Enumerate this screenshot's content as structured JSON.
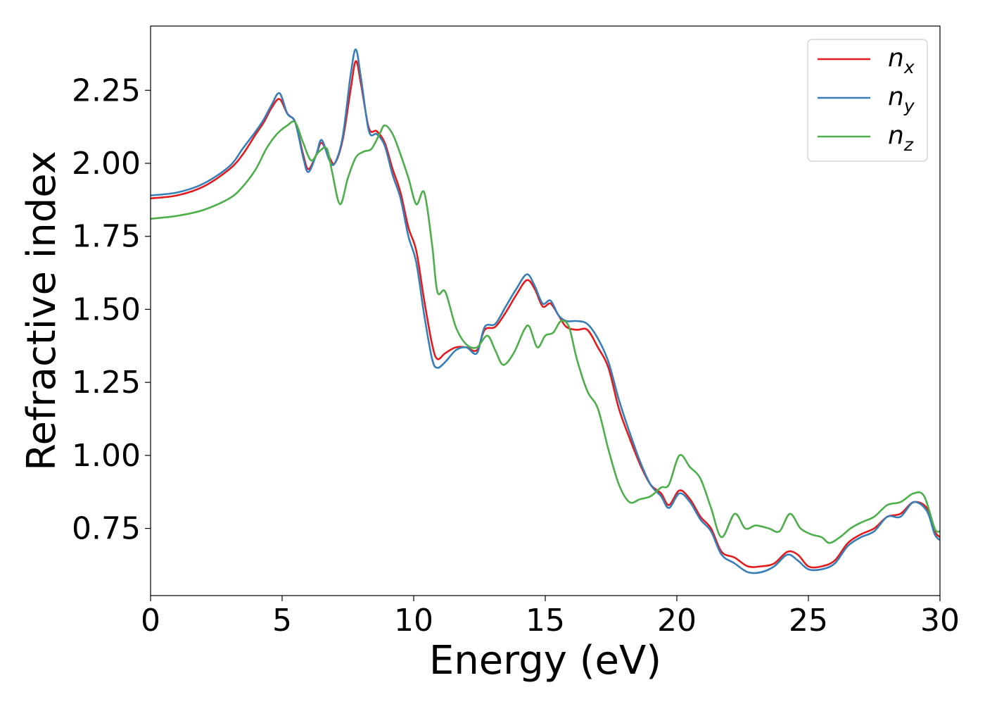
{
  "chart_data": {
    "type": "line",
    "xlabel": "Energy (eV)",
    "ylabel": "Refractive index",
    "xlim": [
      0,
      30
    ],
    "ylim": [
      0.52,
      2.47
    ],
    "x_ticks": [
      "0",
      "5",
      "10",
      "15",
      "20",
      "25",
      "30"
    ],
    "y_ticks": [
      "0.75",
      "1.00",
      "1.25",
      "1.50",
      "1.75",
      "2.00",
      "2.25"
    ],
    "grid": false,
    "legend_position": "top-right",
    "series": [
      {
        "name": "n_x",
        "label_base": "n",
        "label_sub": "x",
        "color": "#e41a1c",
        "points": [
          [
            0,
            1.88
          ],
          [
            1,
            1.89
          ],
          [
            2,
            1.92
          ],
          [
            3,
            1.98
          ],
          [
            3.5,
            2.03
          ],
          [
            4,
            2.1
          ],
          [
            4.3,
            2.14
          ],
          [
            4.6,
            2.19
          ],
          [
            4.9,
            2.22
          ],
          [
            5.2,
            2.17
          ],
          [
            5.5,
            2.14
          ],
          [
            5.8,
            2.03
          ],
          [
            6.0,
            1.98
          ],
          [
            6.3,
            2.03
          ],
          [
            6.5,
            2.07
          ],
          [
            6.8,
            2.02
          ],
          [
            7.0,
            2.0
          ],
          [
            7.3,
            2.08
          ],
          [
            7.6,
            2.25
          ],
          [
            7.8,
            2.35
          ],
          [
            8.0,
            2.27
          ],
          [
            8.3,
            2.12
          ],
          [
            8.6,
            2.11
          ],
          [
            8.9,
            2.07
          ],
          [
            9.2,
            1.98
          ],
          [
            9.5,
            1.9
          ],
          [
            9.8,
            1.78
          ],
          [
            10.1,
            1.7
          ],
          [
            10.4,
            1.53
          ],
          [
            10.7,
            1.38
          ],
          [
            10.9,
            1.33
          ],
          [
            11.2,
            1.35
          ],
          [
            11.6,
            1.37
          ],
          [
            12.0,
            1.37
          ],
          [
            12.4,
            1.36
          ],
          [
            12.7,
            1.43
          ],
          [
            13.1,
            1.44
          ],
          [
            13.5,
            1.49
          ],
          [
            13.9,
            1.55
          ],
          [
            14.3,
            1.6
          ],
          [
            14.6,
            1.57
          ],
          [
            14.9,
            1.51
          ],
          [
            15.2,
            1.52
          ],
          [
            15.5,
            1.48
          ],
          [
            15.8,
            1.44
          ],
          [
            16.2,
            1.43
          ],
          [
            16.6,
            1.43
          ],
          [
            17.0,
            1.37
          ],
          [
            17.4,
            1.3
          ],
          [
            17.8,
            1.16
          ],
          [
            18.2,
            1.06
          ],
          [
            18.6,
            0.97
          ],
          [
            19.0,
            0.9
          ],
          [
            19.4,
            0.87
          ],
          [
            19.7,
            0.83
          ],
          [
            20.1,
            0.88
          ],
          [
            20.5,
            0.85
          ],
          [
            20.9,
            0.79
          ],
          [
            21.3,
            0.75
          ],
          [
            21.7,
            0.67
          ],
          [
            22.2,
            0.65
          ],
          [
            22.7,
            0.62
          ],
          [
            23.2,
            0.62
          ],
          [
            23.7,
            0.63
          ],
          [
            24.2,
            0.67
          ],
          [
            24.6,
            0.66
          ],
          [
            25.0,
            0.62
          ],
          [
            25.5,
            0.62
          ],
          [
            26.0,
            0.64
          ],
          [
            26.5,
            0.7
          ],
          [
            27.0,
            0.73
          ],
          [
            27.5,
            0.75
          ],
          [
            28.0,
            0.79
          ],
          [
            28.5,
            0.8
          ],
          [
            29.0,
            0.84
          ],
          [
            29.5,
            0.82
          ],
          [
            29.8,
            0.74
          ],
          [
            30,
            0.72
          ]
        ]
      },
      {
        "name": "n_y",
        "label_base": "n",
        "label_sub": "y",
        "color": "#377eb8",
        "points": [
          [
            0,
            1.89
          ],
          [
            1,
            1.9
          ],
          [
            2,
            1.93
          ],
          [
            3,
            1.99
          ],
          [
            3.5,
            2.05
          ],
          [
            4,
            2.11
          ],
          [
            4.3,
            2.15
          ],
          [
            4.6,
            2.2
          ],
          [
            4.9,
            2.24
          ],
          [
            5.2,
            2.17
          ],
          [
            5.5,
            2.14
          ],
          [
            5.8,
            2.02
          ],
          [
            6.0,
            1.97
          ],
          [
            6.3,
            2.03
          ],
          [
            6.5,
            2.08
          ],
          [
            6.8,
            2.01
          ],
          [
            7.0,
            2.0
          ],
          [
            7.3,
            2.09
          ],
          [
            7.6,
            2.3
          ],
          [
            7.8,
            2.39
          ],
          [
            8.0,
            2.29
          ],
          [
            8.3,
            2.11
          ],
          [
            8.6,
            2.1
          ],
          [
            8.9,
            2.06
          ],
          [
            9.2,
            1.96
          ],
          [
            9.5,
            1.88
          ],
          [
            9.8,
            1.75
          ],
          [
            10.1,
            1.66
          ],
          [
            10.4,
            1.48
          ],
          [
            10.7,
            1.33
          ],
          [
            10.9,
            1.3
          ],
          [
            11.2,
            1.32
          ],
          [
            11.6,
            1.36
          ],
          [
            12.0,
            1.37
          ],
          [
            12.4,
            1.35
          ],
          [
            12.7,
            1.44
          ],
          [
            13.1,
            1.45
          ],
          [
            13.5,
            1.51
          ],
          [
            13.9,
            1.57
          ],
          [
            14.3,
            1.62
          ],
          [
            14.6,
            1.58
          ],
          [
            14.9,
            1.52
          ],
          [
            15.2,
            1.53
          ],
          [
            15.5,
            1.48
          ],
          [
            15.8,
            1.46
          ],
          [
            16.2,
            1.46
          ],
          [
            16.6,
            1.45
          ],
          [
            17.0,
            1.4
          ],
          [
            17.4,
            1.32
          ],
          [
            17.8,
            1.19
          ],
          [
            18.2,
            1.08
          ],
          [
            18.6,
            0.98
          ],
          [
            19.0,
            0.9
          ],
          [
            19.4,
            0.86
          ],
          [
            19.7,
            0.82
          ],
          [
            20.1,
            0.87
          ],
          [
            20.5,
            0.84
          ],
          [
            20.9,
            0.78
          ],
          [
            21.3,
            0.74
          ],
          [
            21.7,
            0.66
          ],
          [
            22.2,
            0.63
          ],
          [
            22.7,
            0.6
          ],
          [
            23.2,
            0.6
          ],
          [
            23.7,
            0.62
          ],
          [
            24.2,
            0.66
          ],
          [
            24.6,
            0.64
          ],
          [
            25.0,
            0.61
          ],
          [
            25.5,
            0.61
          ],
          [
            26.0,
            0.63
          ],
          [
            26.5,
            0.69
          ],
          [
            27.0,
            0.72
          ],
          [
            27.5,
            0.74
          ],
          [
            28.0,
            0.79
          ],
          [
            28.5,
            0.79
          ],
          [
            29.0,
            0.84
          ],
          [
            29.5,
            0.81
          ],
          [
            29.8,
            0.73
          ],
          [
            30,
            0.71
          ]
        ]
      },
      {
        "name": "n_z",
        "label_base": "n",
        "label_sub": "z",
        "color": "#4daf4a",
        "points": [
          [
            0,
            1.81
          ],
          [
            1,
            1.82
          ],
          [
            2,
            1.84
          ],
          [
            3,
            1.88
          ],
          [
            3.5,
            1.92
          ],
          [
            4,
            1.98
          ],
          [
            4.4,
            2.05
          ],
          [
            4.8,
            2.1
          ],
          [
            5.2,
            2.13
          ],
          [
            5.5,
            2.14
          ],
          [
            5.8,
            2.07
          ],
          [
            6.1,
            2.01
          ],
          [
            6.4,
            2.04
          ],
          [
            6.7,
            2.05
          ],
          [
            6.9,
            1.97
          ],
          [
            7.2,
            1.86
          ],
          [
            7.5,
            1.95
          ],
          [
            7.8,
            2.02
          ],
          [
            8.1,
            2.04
          ],
          [
            8.4,
            2.05
          ],
          [
            8.7,
            2.1
          ],
          [
            8.9,
            2.13
          ],
          [
            9.2,
            2.1
          ],
          [
            9.5,
            2.03
          ],
          [
            9.8,
            1.95
          ],
          [
            10.1,
            1.86
          ],
          [
            10.4,
            1.9
          ],
          [
            10.7,
            1.72
          ],
          [
            10.9,
            1.56
          ],
          [
            11.2,
            1.56
          ],
          [
            11.6,
            1.44
          ],
          [
            12.0,
            1.38
          ],
          [
            12.4,
            1.37
          ],
          [
            12.8,
            1.41
          ],
          [
            13.1,
            1.36
          ],
          [
            13.4,
            1.31
          ],
          [
            13.8,
            1.35
          ],
          [
            14.2,
            1.43
          ],
          [
            14.4,
            1.44
          ],
          [
            14.7,
            1.37
          ],
          [
            15.0,
            1.41
          ],
          [
            15.3,
            1.42
          ],
          [
            15.6,
            1.46
          ],
          [
            15.9,
            1.44
          ],
          [
            16.2,
            1.33
          ],
          [
            16.6,
            1.22
          ],
          [
            17.0,
            1.16
          ],
          [
            17.4,
            1.02
          ],
          [
            17.8,
            0.9
          ],
          [
            18.2,
            0.84
          ],
          [
            18.6,
            0.85
          ],
          [
            19.0,
            0.86
          ],
          [
            19.4,
            0.89
          ],
          [
            19.7,
            0.9
          ],
          [
            20.1,
            1.0
          ],
          [
            20.5,
            0.96
          ],
          [
            20.9,
            0.92
          ],
          [
            21.3,
            0.82
          ],
          [
            21.7,
            0.72
          ],
          [
            22.2,
            0.8
          ],
          [
            22.6,
            0.75
          ],
          [
            23.0,
            0.76
          ],
          [
            23.5,
            0.75
          ],
          [
            23.9,
            0.74
          ],
          [
            24.3,
            0.8
          ],
          [
            24.7,
            0.75
          ],
          [
            25.1,
            0.73
          ],
          [
            25.5,
            0.72
          ],
          [
            25.8,
            0.7
          ],
          [
            26.2,
            0.72
          ],
          [
            26.6,
            0.75
          ],
          [
            27.0,
            0.77
          ],
          [
            27.5,
            0.79
          ],
          [
            28.0,
            0.83
          ],
          [
            28.5,
            0.84
          ],
          [
            29.0,
            0.87
          ],
          [
            29.4,
            0.86
          ],
          [
            29.8,
            0.75
          ],
          [
            30,
            0.74
          ]
        ]
      }
    ]
  }
}
